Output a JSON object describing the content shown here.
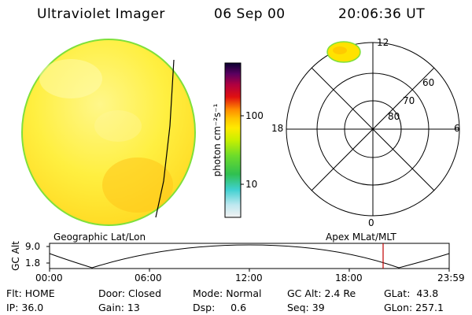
{
  "header": {
    "instrument": "Ultraviolet Imager",
    "date": "06 Sep 00",
    "time": "20:06:36 UT"
  },
  "colorbar": {
    "unit_label": "photon cm⁻²s⁻¹",
    "tick_100": "100",
    "tick_10": "10"
  },
  "polar": {
    "top": "12",
    "left": "18",
    "right": "6",
    "bottom": "0",
    "lat_60": "60",
    "lat_70": "70",
    "lat_80": "80"
  },
  "timeline": {
    "left_label": "Geographic Lat/Lon",
    "right_label": "Apex MLat/MLT",
    "axis_title": "GC Alt",
    "y_top": "9.0",
    "y_bottom": "1.8",
    "ticks": [
      "00:00",
      "06:00",
      "12:00",
      "18:00",
      "23:59"
    ]
  },
  "status": {
    "row1": {
      "flt": "Flt: HOME",
      "door": "Door: Closed",
      "mode": "Mode: Normal",
      "gcalt": "GC Alt: 2.4 Re",
      "glat": "GLat:  43.8"
    },
    "row2": {
      "ip": "IP: 36.0",
      "gain": "Gain: 13",
      "dsp": "Dsp:     0.6",
      "seq": "Seq: 39",
      "glon": "GLon: 257.1"
    }
  },
  "colors": {
    "disk_fill": "#ffe800",
    "disk_edge": "#7fe03a",
    "marker": "#c00000"
  }
}
